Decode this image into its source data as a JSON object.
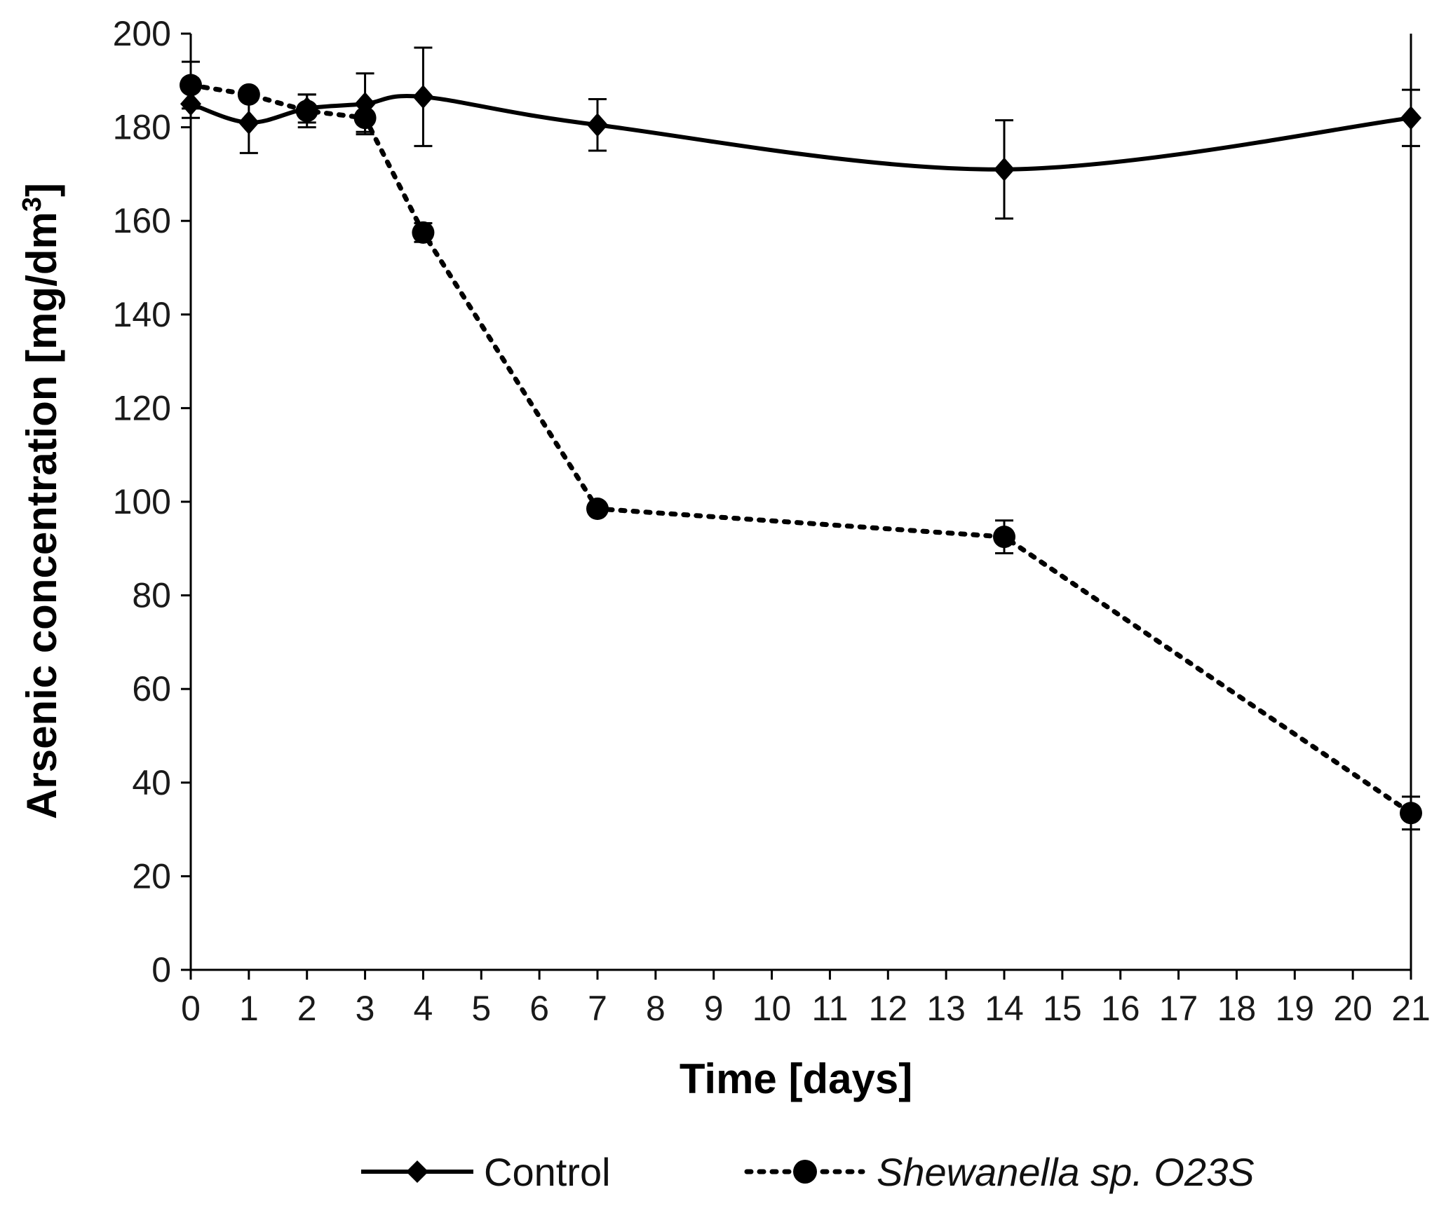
{
  "chart_data": {
    "type": "line",
    "title": "",
    "xlabel": "Time [days]",
    "ylabel": "Arsenic concentration [mg/dm",
    "ylabel_superscript": "3",
    "ylabel_suffix": "]",
    "xlim": [
      0,
      21
    ],
    "ylim": [
      0,
      200
    ],
    "x_ticks": [
      0,
      1,
      2,
      3,
      4,
      5,
      6,
      7,
      8,
      9,
      10,
      11,
      12,
      13,
      14,
      15,
      16,
      17,
      18,
      19,
      20,
      21
    ],
    "y_ticks": [
      0,
      20,
      40,
      60,
      80,
      100,
      120,
      140,
      160,
      180,
      200
    ],
    "grid": false,
    "legend_position": "bottom",
    "series": [
      {
        "name": "Control",
        "style": "solid",
        "marker": "diamond",
        "color": "#000000",
        "x": [
          0,
          1,
          2,
          3,
          4,
          7,
          14,
          21
        ],
        "values": [
          185,
          181,
          184,
          185,
          186.5,
          180.5,
          171,
          182
        ],
        "errors": [
          3,
          6.5,
          3,
          6.5,
          10.5,
          5.5,
          10.5,
          6
        ]
      },
      {
        "name": "Shewanella sp. O23S",
        "style": "dotted",
        "marker": "circle",
        "color": "#000000",
        "x": [
          0,
          1,
          2,
          3,
          4,
          7,
          14,
          21
        ],
        "values": [
          189,
          187,
          183.5,
          182,
          157.5,
          98.5,
          92.5,
          33.5
        ],
        "errors": [
          5,
          0,
          3.5,
          3,
          2,
          1,
          3.5,
          3.5
        ]
      }
    ]
  }
}
